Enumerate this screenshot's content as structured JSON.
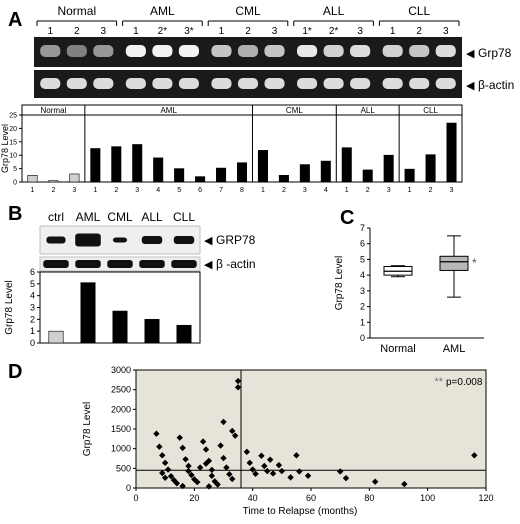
{
  "panel_labels": {
    "a": "A",
    "b": "B",
    "c": "C",
    "d": "D"
  },
  "panel_a": {
    "groups": [
      {
        "name": "Normal",
        "lanes": [
          "1",
          "2",
          "3"
        ]
      },
      {
        "name": "AML",
        "lanes": [
          "1",
          "2*",
          "3*"
        ]
      },
      {
        "name": "CML",
        "lanes": [
          "1",
          "2",
          "3"
        ]
      },
      {
        "name": "ALL",
        "lanes": [
          "1*",
          "2*",
          "3"
        ]
      },
      {
        "name": "CLL",
        "lanes": [
          "1",
          "2",
          "3"
        ]
      }
    ],
    "blot_labels": {
      "top": "Grp78",
      "bottom": "β-actin"
    },
    "arrow": "◀"
  },
  "panel_b": {
    "lanes": [
      "ctrl",
      "AML",
      "CML",
      "ALL",
      "CLL"
    ],
    "blot_labels": {
      "top": "GRP78",
      "bottom": "β -actin"
    },
    "arrow": "◀"
  },
  "chart_data": [
    {
      "type": "bar",
      "panel": "A",
      "ylabel": "Grp78 Level",
      "ylim": [
        0,
        25
      ],
      "yticks": [
        "0",
        "5",
        "10",
        "15",
        "20",
        "25"
      ],
      "groups": [
        {
          "name": "Normal",
          "categories": [
            "1",
            "2",
            "3"
          ],
          "values": [
            2.5,
            0.5,
            3.0
          ],
          "color": "#d0d0d0"
        },
        {
          "name": "AML",
          "categories": [
            "1",
            "2",
            "3",
            "4",
            "5",
            "6",
            "7",
            "8"
          ],
          "values": [
            12.5,
            13.2,
            14.0,
            9.0,
            5.0,
            2.0,
            5.2,
            7.2
          ],
          "color": "#000000"
        },
        {
          "name": "CML",
          "categories": [
            "1",
            "2",
            "3",
            "4"
          ],
          "values": [
            11.8,
            2.5,
            6.5,
            7.8
          ],
          "color": "#000000"
        },
        {
          "name": "ALL",
          "categories": [
            "1",
            "2",
            "3"
          ],
          "values": [
            12.8,
            4.5,
            10.0
          ],
          "color": "#000000"
        },
        {
          "name": "CLL",
          "categories": [
            "1",
            "2",
            "3"
          ],
          "values": [
            4.8,
            10.2,
            22.0
          ],
          "color": "#000000"
        }
      ],
      "grid": false
    },
    {
      "type": "bar",
      "panel": "B",
      "ylabel": "Grp78 Level",
      "ylim": [
        0,
        6
      ],
      "yticks": [
        "0",
        "1",
        "2",
        "3",
        "4",
        "5",
        "6"
      ],
      "categories": [
        "ctrl",
        "AML",
        "CML",
        "ALL",
        "CLL"
      ],
      "values": [
        1.0,
        5.1,
        2.7,
        2.0,
        1.5
      ],
      "colors": [
        "#d0d0d0",
        "#000000",
        "#000000",
        "#000000",
        "#000000"
      ],
      "grid": false
    },
    {
      "type": "box",
      "panel": "C",
      "ylabel": "Grp78 Level",
      "ylim": [
        0,
        7
      ],
      "yticks": [
        "0",
        "1",
        "2",
        "3",
        "4",
        "5",
        "6",
        "7"
      ],
      "categories": [
        "Normal",
        "AML"
      ],
      "boxes": [
        {
          "min": 3.9,
          "q1": 4.0,
          "median": 4.25,
          "q3": 4.55,
          "max": 4.6,
          "color": "#ffffff"
        },
        {
          "min": 2.6,
          "q1": 4.3,
          "median": 4.85,
          "q3": 5.2,
          "max": 6.5,
          "color": "#b8b8b8"
        }
      ],
      "annotation": "*",
      "grid": false
    },
    {
      "type": "scatter",
      "panel": "D",
      "xlabel": "Time to Relapse (months)",
      "ylabel": "Grp78 Level",
      "xlim": [
        0,
        120
      ],
      "ylim": [
        0,
        3000
      ],
      "xticks": [
        "0",
        "20",
        "40",
        "60",
        "80",
        "100",
        "120"
      ],
      "yticks": [
        "0",
        "500",
        "1000",
        "1500",
        "2000",
        "2500",
        "3000"
      ],
      "reference_lines": {
        "x": 36,
        "y": 450
      },
      "annotation": {
        "stars": "**",
        "text": "p=0.008"
      },
      "points": [
        [
          7,
          1380
        ],
        [
          8,
          1050
        ],
        [
          9,
          830
        ],
        [
          10,
          640
        ],
        [
          11,
          470
        ],
        [
          12,
          300
        ],
        [
          13,
          200
        ],
        [
          14,
          120
        ],
        [
          10,
          260
        ],
        [
          9,
          380
        ],
        [
          15,
          1280
        ],
        [
          16,
          1020
        ],
        [
          17,
          730
        ],
        [
          18,
          560
        ],
        [
          18,
          430
        ],
        [
          19,
          330
        ],
        [
          20,
          220
        ],
        [
          21,
          150
        ],
        [
          16,
          50
        ],
        [
          22,
          520
        ],
        [
          23,
          1180
        ],
        [
          24,
          980
        ],
        [
          25,
          690
        ],
        [
          26,
          460
        ],
        [
          26,
          310
        ],
        [
          27,
          170
        ],
        [
          28,
          90
        ],
        [
          24,
          620
        ],
        [
          29,
          1080
        ],
        [
          30,
          760
        ],
        [
          31,
          520
        ],
        [
          32,
          350
        ],
        [
          33,
          230
        ],
        [
          34,
          1330
        ],
        [
          35,
          2560
        ],
        [
          35,
          2720
        ],
        [
          33,
          1450
        ],
        [
          30,
          1680
        ],
        [
          38,
          920
        ],
        [
          39,
          640
        ],
        [
          40,
          470
        ],
        [
          41,
          360
        ],
        [
          43,
          820
        ],
        [
          44,
          560
        ],
        [
          45,
          430
        ],
        [
          46,
          720
        ],
        [
          47,
          370
        ],
        [
          49,
          580
        ],
        [
          50,
          430
        ],
        [
          53,
          270
        ],
        [
          55,
          830
        ],
        [
          56,
          420
        ],
        [
          59,
          310
        ],
        [
          70,
          420
        ],
        [
          72,
          250
        ],
        [
          82,
          160
        ],
        [
          92,
          100
        ],
        [
          116,
          830
        ],
        [
          25,
          40
        ]
      ],
      "grid": false
    }
  ]
}
